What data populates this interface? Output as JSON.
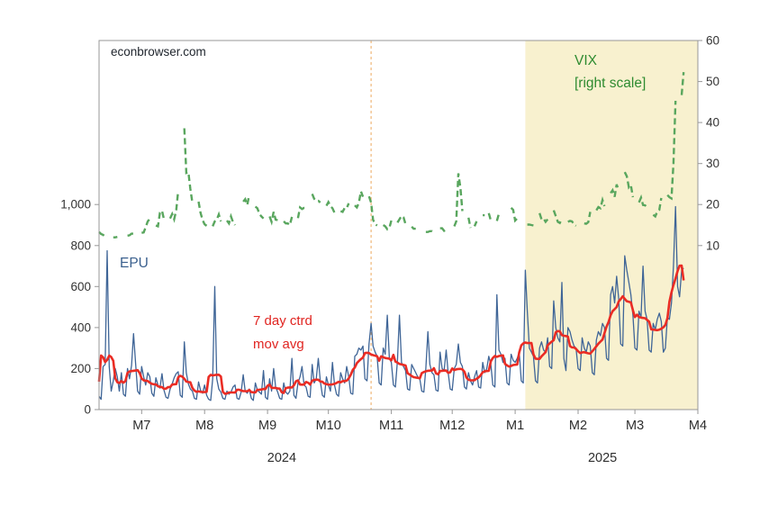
{
  "annotations": {
    "watermark": "econbrowser.com",
    "epu_label": "EPU",
    "mavg_line1": "7 day ctrd",
    "mavg_line2": "mov avg",
    "vix_line1": "VIX",
    "vix_line2": "[right scale]"
  },
  "colors": {
    "epu_line": "#3f6597",
    "mavg_line": "#ea2c24",
    "vix_line": "#59a65e",
    "shade": "#f8f1cf",
    "event_line": "#eda95f",
    "frame": "#979797",
    "tick_text": "#333333"
  },
  "chart_data": {
    "type": "line",
    "start_date": "2024-06-24",
    "x_unit": "day_index",
    "x_range": [
      0,
      295
    ],
    "x_ticks": [
      {
        "label": "M7",
        "index": 21
      },
      {
        "label": "M8",
        "index": 52
      },
      {
        "label": "M9",
        "index": 83
      },
      {
        "label": "M10",
        "index": 113
      },
      {
        "label": "M11",
        "index": 144
      },
      {
        "label": "M12",
        "index": 174
      },
      {
        "label": "M1",
        "index": 205
      },
      {
        "label": "M2",
        "index": 236
      },
      {
        "label": "M3",
        "index": 264
      },
      {
        "label": "M4",
        "index": 295
      }
    ],
    "year_labels": [
      {
        "label": "2024",
        "index": 90
      },
      {
        "label": "2025",
        "index": 248
      }
    ],
    "left_axis": {
      "domain": [
        0,
        1800
      ],
      "ticks": [
        {
          "label": "0",
          "value": 0
        },
        {
          "label": "200",
          "value": 200
        },
        {
          "label": "400",
          "value": 400
        },
        {
          "label": "600",
          "value": 600
        },
        {
          "label": "800",
          "value": 800
        },
        {
          "label": "1,000",
          "value": 1000
        }
      ]
    },
    "right_axis": {
      "domain": [
        -30,
        60
      ],
      "ticks": [
        {
          "label": "10",
          "value": 10
        },
        {
          "label": "20",
          "value": 20
        },
        {
          "label": "30",
          "value": 30
        },
        {
          "label": "40",
          "value": 40
        },
        {
          "label": "50",
          "value": 50
        },
        {
          "label": "60",
          "value": 60
        }
      ]
    },
    "event_line": {
      "index": 134,
      "date": "2024-11-05",
      "color": "#eda95f",
      "style": "dashed"
    },
    "shaded_region": {
      "start_index": 210,
      "end_index": 295,
      "start_date": "2025-01-20",
      "color": "#f8f1cf"
    },
    "series": [
      {
        "name": "EPU",
        "axis": "left",
        "color": "#3f6597",
        "style": "solid",
        "values": [
          65,
          50,
          210,
          220,
          775,
          210,
          90,
          140,
          200,
          160,
          90,
          180,
          75,
          65,
          200,
          150,
          215,
          370,
          225,
          90,
          75,
          210,
          160,
          120,
          180,
          160,
          80,
          65,
          155,
          120,
          105,
          175,
          95,
          60,
          55,
          100,
          125,
          155,
          175,
          185,
          70,
          60,
          330,
          180,
          125,
          100,
          90,
          55,
          50,
          135,
          95,
          80,
          120,
          70,
          50,
          45,
          150,
          600,
          150,
          100,
          85,
          55,
          50,
          90,
          75,
          85,
          110,
          120,
          55,
          50,
          85,
          170,
          90,
          80,
          100,
          55,
          45,
          130,
          95,
          85,
          75,
          190,
          60,
          50,
          150,
          90,
          200,
          110,
          85,
          55,
          50,
          130,
          85,
          75,
          90,
          250,
          70,
          55,
          130,
          160,
          210,
          120,
          110,
          65,
          60,
          220,
          130,
          150,
          250,
          140,
          70,
          60,
          160,
          120,
          90,
          230,
          120,
          75,
          65,
          180,
          150,
          130,
          210,
          160,
          80,
          75,
          260,
          270,
          300,
          290,
          310,
          150,
          140,
          320,
          420,
          310,
          280,
          260,
          130,
          120,
          300,
          270,
          460,
          250,
          230,
          120,
          110,
          240,
          460,
          230,
          210,
          190,
          100,
          95,
          220,
          200,
          180,
          160,
          150,
          90,
          85,
          200,
          380,
          220,
          180,
          170,
          95,
          90,
          280,
          200,
          190,
          290,
          180,
          100,
          95,
          200,
          220,
          320,
          230,
          210,
          110,
          100,
          180,
          140,
          120,
          160,
          190,
          110,
          105,
          230,
          180,
          200,
          260,
          220,
          120,
          110,
          560,
          290,
          270,
          230,
          250,
          130,
          120,
          270,
          240,
          230,
          250,
          280,
          140,
          130,
          680,
          480,
          300,
          280,
          260,
          140,
          130,
          300,
          330,
          290,
          280,
          350,
          210,
          200,
          530,
          400,
          350,
          330,
          620,
          250,
          190,
          400,
          380,
          340,
          310,
          300,
          200,
          190,
          350,
          300,
          280,
          330,
          310,
          180,
          170,
          340,
          380,
          360,
          420,
          400,
          250,
          240,
          560,
          600,
          520,
          650,
          540,
          320,
          310,
          750,
          680,
          620,
          560,
          460,
          300,
          290,
          480,
          450,
          700,
          480,
          440,
          290,
          280,
          420,
          390,
          440,
          470,
          430,
          280,
          300,
          450,
          440,
          520,
          700,
          990,
          600,
          550,
          680,
          690
        ]
      },
      {
        "name": "7 day ctrd mov avg",
        "axis": "left",
        "color": "#ea2c24",
        "style": "solid",
        "derived": "centered_moving_average_7",
        "of": "EPU"
      },
      {
        "name": "VIX",
        "axis": "right",
        "color": "#59a65e",
        "style": "dashed",
        "values": [
          13.3,
          12.8,
          12.6,
          12.2,
          12.4,
          null,
          null,
          12.0,
          12.0,
          12.1,
          null,
          12.5,
          null,
          null,
          12.4,
          12.5,
          12.9,
          12.9,
          12.5,
          null,
          null,
          13.1,
          13.2,
          14.5,
          15.9,
          16.5,
          null,
          null,
          14.9,
          14.7,
          18.0,
          18.5,
          16.4,
          null,
          null,
          16.6,
          17.7,
          16.4,
          18.6,
          23.4,
          null,
          null,
          38.6,
          27.7,
          27.9,
          23.8,
          20.4,
          null,
          null,
          20.7,
          18.0,
          16.2,
          15.2,
          14.8,
          null,
          null,
          14.7,
          15.9,
          16.3,
          17.6,
          15.9,
          null,
          null,
          16.1,
          15.4,
          17.1,
          15.7,
          15.0,
          null,
          null,
          null,
          20.7,
          21.3,
          19.9,
          22.4,
          null,
          null,
          19.5,
          19.1,
          17.7,
          17.1,
          16.6,
          null,
          null,
          17.1,
          15.8,
          18.2,
          16.3,
          16.2,
          null,
          null,
          15.9,
          15.4,
          15.4,
          15.0,
          17.0,
          null,
          null,
          16.7,
          19.3,
          18.9,
          19.2,
          19.2,
          null,
          null,
          22.6,
          21.4,
          20.9,
          20.9,
          20.5,
          null,
          null,
          19.7,
          20.6,
          19.6,
          19.1,
          18.0,
          null,
          null,
          18.4,
          18.2,
          19.2,
          19.1,
          20.3,
          null,
          null,
          19.8,
          19.3,
          20.4,
          23.2,
          21.9,
          null,
          null,
          22.0,
          20.5,
          16.3,
          15.2,
          14.9,
          null,
          null,
          15.0,
          14.7,
          14.0,
          14.3,
          16.1,
          null,
          null,
          15.6,
          16.4,
          17.2,
          16.9,
          15.2,
          null,
          null,
          14.6,
          14.1,
          14.1,
          null,
          13.5,
          null,
          null,
          13.3,
          13.3,
          13.5,
          13.5,
          12.8,
          null,
          null,
          14.2,
          14.2,
          13.6,
          13.9,
          13.8,
          null,
          null,
          14.7,
          15.9,
          27.6,
          24.1,
          18.4,
          null,
          null,
          16.8,
          14.3,
          null,
          14.7,
          15.9,
          null,
          null,
          17.4,
          17.4,
          null,
          17.9,
          16.1,
          null,
          null,
          16.0,
          17.8,
          17.7,
          null,
          19.5,
          null,
          null,
          19.2,
          18.7,
          16.1,
          16.6,
          16.0,
          null,
          null,
          null,
          15.1,
          15.1,
          15.0,
          14.9,
          null,
          null,
          17.9,
          16.4,
          16.6,
          15.8,
          16.4,
          null,
          null,
          18.6,
          17.2,
          15.8,
          15.5,
          16.5,
          null,
          null,
          15.8,
          16.0,
          15.9,
          15.1,
          14.8,
          null,
          null,
          null,
          15.4,
          15.3,
          15.7,
          18.2,
          null,
          null,
          18.6,
          19.4,
          19.1,
          21.1,
          19.6,
          null,
          null,
          22.8,
          23.5,
          21.9,
          24.9,
          23.4,
          null,
          null,
          27.9,
          26.9,
          24.2,
          24.7,
          21.8,
          null,
          null,
          20.5,
          21.7,
          19.9,
          19.8,
          19.3,
          null,
          null,
          17.5,
          17.1,
          18.3,
          18.7,
          21.6,
          null,
          null,
          22.3,
          21.8,
          21.5,
          30.0,
          45.3,
          null,
          null,
          46.7,
          52.3
        ]
      }
    ]
  }
}
